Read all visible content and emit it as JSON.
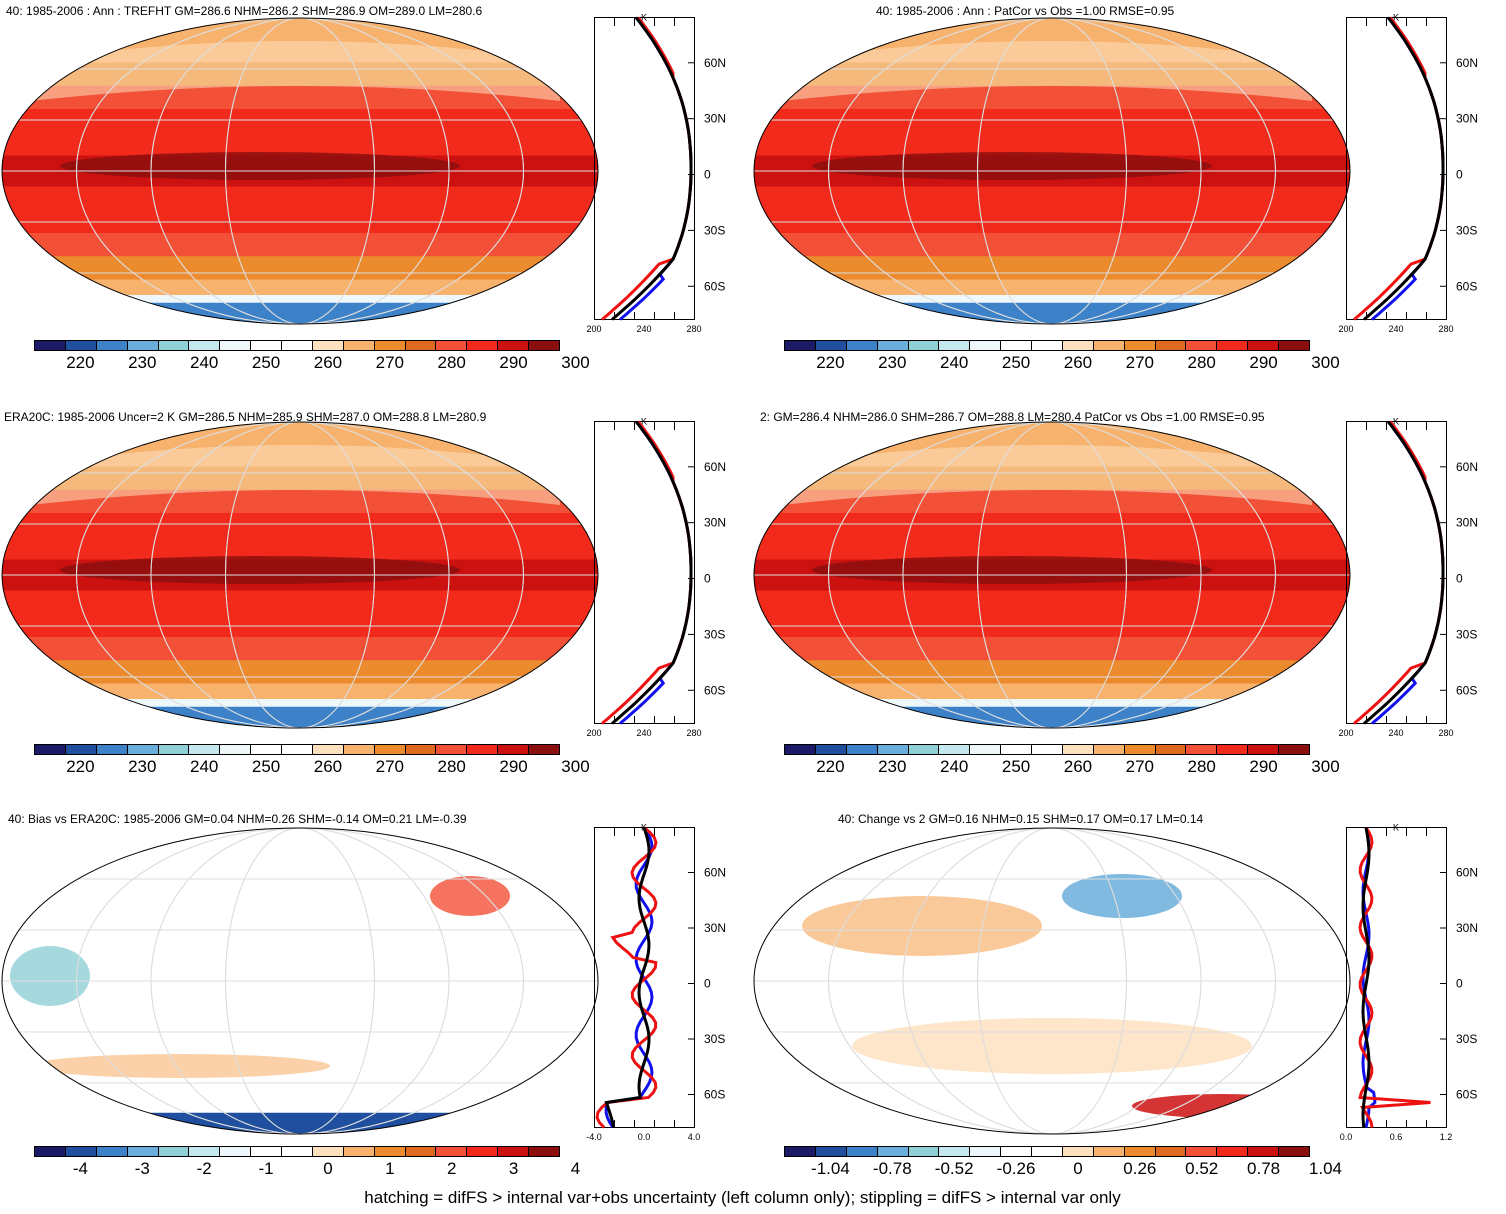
{
  "panels": [
    {
      "id": "p1",
      "title": "40: 1985-2006 : Ann : TREFHT GM=286.6 NHM=286.2 SHM=286.9 OM=289.0 LM=280.6",
      "field": "absolute",
      "colorbar": [
        "220",
        "230",
        "240",
        "250",
        "260",
        "270",
        "280",
        "290",
        "300"
      ],
      "profile_xticks": [
        "200",
        "240",
        "280"
      ],
      "profile_unit": "K",
      "lat_labels": [
        "60N",
        "30N",
        "0",
        "30S",
        "60S"
      ]
    },
    {
      "id": "p2",
      "title": "40: 1985-2006 : Ann : PatCor vs Obs =1.00 RMSE=0.95",
      "field": "absolute",
      "colorbar": [
        "220",
        "230",
        "240",
        "250",
        "260",
        "270",
        "280",
        "290",
        "300"
      ],
      "profile_xticks": [
        "200",
        "240",
        "280"
      ],
      "profile_unit": "K",
      "lat_labels": [
        "60N",
        "30N",
        "0",
        "30S",
        "60S"
      ]
    },
    {
      "id": "p3",
      "title": "ERA20C: 1985-2006 Uncer=2 K GM=286.5 NHM=285.9 SHM=287.0 OM=288.8 LM=280.9",
      "field": "absolute",
      "colorbar": [
        "220",
        "230",
        "240",
        "250",
        "260",
        "270",
        "280",
        "290",
        "300"
      ],
      "profile_xticks": [
        "200",
        "240",
        "280"
      ],
      "profile_unit": "K",
      "lat_labels": [
        "60N",
        "30N",
        "0",
        "30S",
        "60S"
      ]
    },
    {
      "id": "p4",
      "title": "2: GM=286.4 NHM=286.0 SHM=286.7 OM=288.8 LM=280.4 PatCor vs Obs =1.00 RMSE=0.95",
      "field": "absolute",
      "colorbar": [
        "220",
        "230",
        "240",
        "250",
        "260",
        "270",
        "280",
        "290",
        "300"
      ],
      "profile_xticks": [
        "200",
        "240",
        "280"
      ],
      "profile_unit": "K",
      "lat_labels": [
        "60N",
        "30N",
        "0",
        "30S",
        "60S"
      ]
    },
    {
      "id": "p5",
      "title": "40: Bias vs ERA20C: 1985-2006 GM=0.04 NHM=0.26 SHM=-0.14 OM=0.21 LM=-0.39",
      "field": "bias",
      "colorbar": [
        "-4",
        "-3",
        "-2",
        "-1",
        "0",
        "1",
        "2",
        "3",
        "4"
      ],
      "profile_xticks": [
        "-4.0",
        "0.0",
        "4.0"
      ],
      "profile_unit": "K",
      "lat_labels": [
        "60N",
        "30N",
        "0",
        "30S",
        "60S"
      ]
    },
    {
      "id": "p6",
      "title": "40: Change vs 2 GM=0.16 NHM=0.15 SHM=0.17 OM=0.17 LM=0.14",
      "field": "change",
      "colorbar": [
        "-1.04",
        "-0.78",
        "-0.52",
        "-0.26",
        "0",
        "0.26",
        "0.52",
        "0.78",
        "1.04"
      ],
      "profile_xticks": [
        "0.0",
        "0.6",
        "1.2"
      ],
      "profile_unit": "K",
      "lat_labels": [
        "60N",
        "30N",
        "0",
        "30S",
        "60S"
      ]
    }
  ],
  "palette": [
    "#1a1a66",
    "#1f4f9e",
    "#3d82c8",
    "#6aaedc",
    "#8fd0d6",
    "#c5e8ef",
    "#eef8fb",
    "#ffffff",
    "#ffffff",
    "#fde0bd",
    "#f7b26e",
    "#ec8a2e",
    "#de6a20",
    "#f25037",
    "#f12a1c",
    "#cc1111",
    "#8a0e0e"
  ],
  "profile_colors": {
    "model": "#ee1111",
    "obs": "#1111ee",
    "ref": "#000000"
  },
  "footer": "hatching = difFS > internal var+obs uncertainty (left column only); stippling = difFS > internal var only"
}
